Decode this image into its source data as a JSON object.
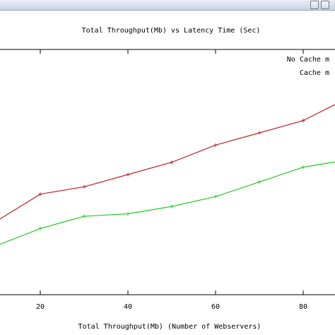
{
  "window": {
    "bar_color": "#c9d3e3"
  },
  "chart_data": {
    "type": "line",
    "title": "Total Throughput(Mb) vs Latency Time (Sec)",
    "xlabel": "Total Throughput(Mb) (Number of Webservers)",
    "ylabel": "",
    "x_ticks": [
      20,
      40,
      60,
      80
    ],
    "xlim": [
      8,
      95
    ],
    "ylim": [
      0,
      1
    ],
    "grid": false,
    "legend_position": "top-right",
    "x": [
      10,
      20,
      30,
      40,
      50,
      60,
      70,
      80,
      90
    ],
    "series": [
      {
        "name": "No Cache m",
        "color": "#bb2222",
        "values": [
          0.3,
          0.41,
          0.44,
          0.49,
          0.54,
          0.61,
          0.66,
          0.71,
          0.8
        ]
      },
      {
        "name": "Cache m",
        "color": "#22cc22",
        "values": [
          0.2,
          0.27,
          0.32,
          0.33,
          0.36,
          0.4,
          0.46,
          0.52,
          0.55
        ]
      }
    ]
  }
}
